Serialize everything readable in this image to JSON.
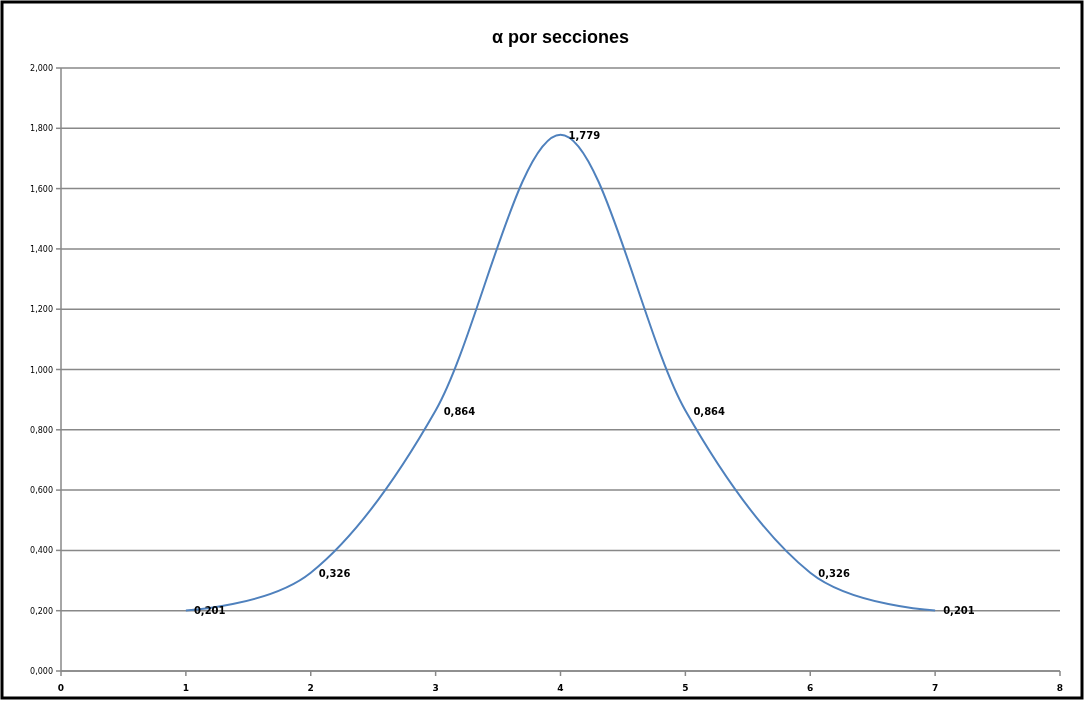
{
  "chart_data": {
    "type": "line",
    "title": "α por secciones",
    "x": [
      1,
      2,
      3,
      4,
      5,
      6,
      7
    ],
    "series": [
      {
        "color": "#4f81bd",
        "values": [
          0.201,
          0.326,
          0.864,
          1.779,
          0.864,
          0.326,
          0.201
        ],
        "value_labels": [
          "0,201",
          "0,326",
          "0,864",
          "1,779",
          "0,864",
          "0,326",
          "0,201"
        ]
      }
    ],
    "xlim": [
      0,
      8
    ],
    "xticks": [
      0,
      1,
      2,
      3,
      4,
      5,
      6,
      7,
      8
    ],
    "ylim": [
      0,
      2
    ],
    "yticks": [
      {
        "value": 0,
        "label": "0,000"
      },
      {
        "value": 0.2,
        "label": "0,200"
      },
      {
        "value": 0.4,
        "label": "0,400"
      },
      {
        "value": 0.6,
        "label": "0,600"
      },
      {
        "value": 0.8,
        "label": "0,800"
      },
      {
        "value": 1,
        "label": "1,000"
      },
      {
        "value": 1.2,
        "label": "1,200"
      },
      {
        "value": 1.4,
        "label": "1,400"
      },
      {
        "value": 1.6,
        "label": "1,600"
      },
      {
        "value": 1.8,
        "label": "1,800"
      },
      {
        "value": 2,
        "label": "2,000"
      }
    ],
    "grid": "y"
  }
}
